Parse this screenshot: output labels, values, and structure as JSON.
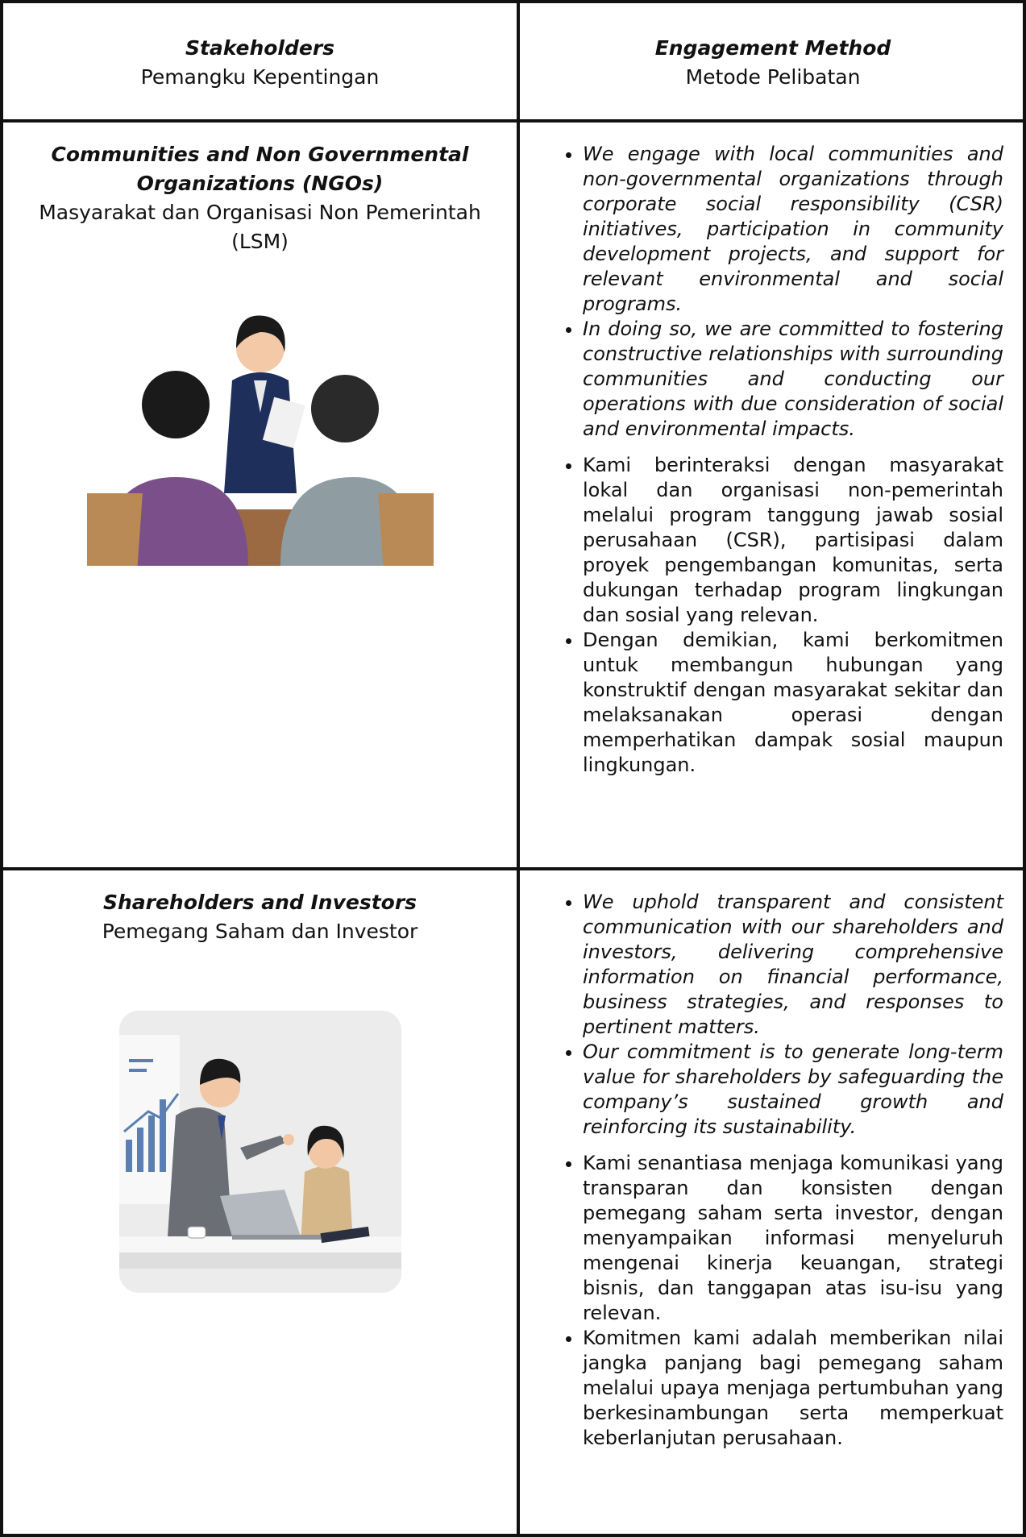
{
  "header": {
    "stakeholders": {
      "en": "Stakeholders",
      "id": "Pemangku Kepentingan"
    },
    "method": {
      "en": "Engagement Method",
      "id": "Metode Pelibatan"
    }
  },
  "rows": [
    {
      "stakeholder": {
        "en": "Communities and Non Governmental Organizations (NGOs)",
        "id": "Masyarakat dan Organisasi Non Pemerintah (LSM)"
      },
      "methods_en": [
        "We engage with local communities and non-governmental organizations through corporate social responsibility (CSR) initiatives, participation in community development projects, and support for relevant environmental and social programs.",
        "In doing so, we are committed to fostering constructive relationships with surrounding communities and conducting our operations with due consideration of social and environmental impacts."
      ],
      "methods_id": [
        "Kami berinteraksi dengan masyarakat lokal dan organisasi non-pemerintah melalui program tanggung jawab sosial perusahaan (CSR), partisipasi dalam proyek pengembangan komunitas, serta dukungan terhadap program lingkungan dan sosial yang relevan.",
        "Dengan demikian, kami berkomitmen untuk membangun hubungan yang konstruktif dengan masyarakat sekitar dan melaksanakan operasi dengan memperhatikan dampak sosial maupun lingkungan."
      ]
    },
    {
      "stakeholder": {
        "en": "Shareholders and Investors",
        "id": "Pemegang Saham dan Investor"
      },
      "methods_en": [
        "We uphold transparent and consistent communication with our shareholders and investors, delivering comprehensive information on financial performance, business strategies, and responses to pertinent matters.",
        "Our commitment is to generate long-term value for shareholders by safeguarding the company’s sustained growth and reinforcing its sustainability."
      ],
      "methods_id": [
        "Kami senantiasa menjaga komunikasi yang transparan dan konsisten dengan pemegang saham serta investor, dengan menyampaikan informasi menyeluruh mengenai kinerja keuangan, strategi bisnis, dan tanggapan atas isu-isu yang relevan.",
        "Komitmen kami adalah memberikan nilai jangka panjang bagi pemegang saham melalui upaya menjaga pertumbuhan yang berkesinambungan serta memperkuat keberlanjutan perusahaan."
      ]
    }
  ]
}
